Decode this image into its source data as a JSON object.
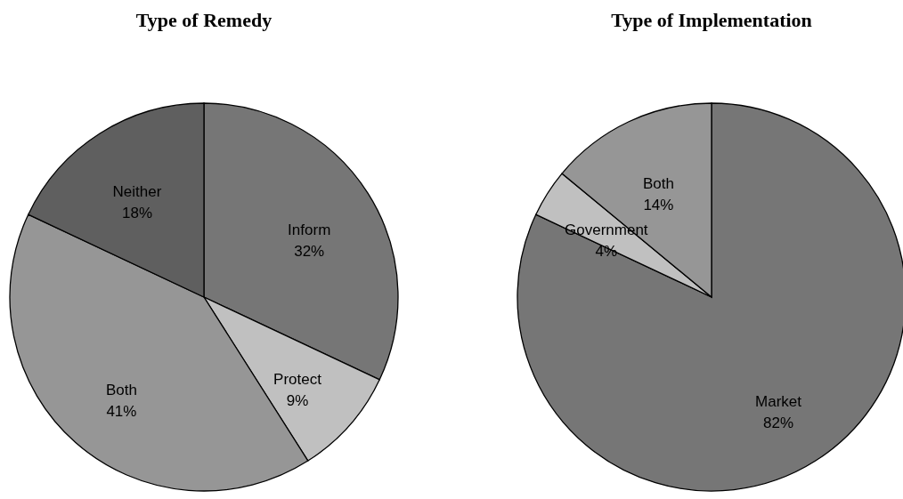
{
  "chart_data": [
    {
      "type": "pie",
      "title": "Type of Remedy",
      "categories": [
        "Inform",
        "Protect",
        "Both",
        "Neither"
      ],
      "values": [
        32,
        9,
        41,
        18
      ],
      "value_labels": [
        "32%",
        "9%",
        "41%",
        "18%"
      ],
      "colors": [
        "#767676",
        "#c0c0c0",
        "#969696",
        "#5f5f5f"
      ]
    },
    {
      "type": "pie",
      "title": "Type of Implementation",
      "categories": [
        "Market",
        "Government",
        "Both"
      ],
      "values": [
        82,
        4,
        14
      ],
      "value_labels": [
        "82%",
        "4%",
        "14%"
      ],
      "colors": [
        "#767676",
        "#c0c0c0",
        "#969696"
      ]
    }
  ]
}
